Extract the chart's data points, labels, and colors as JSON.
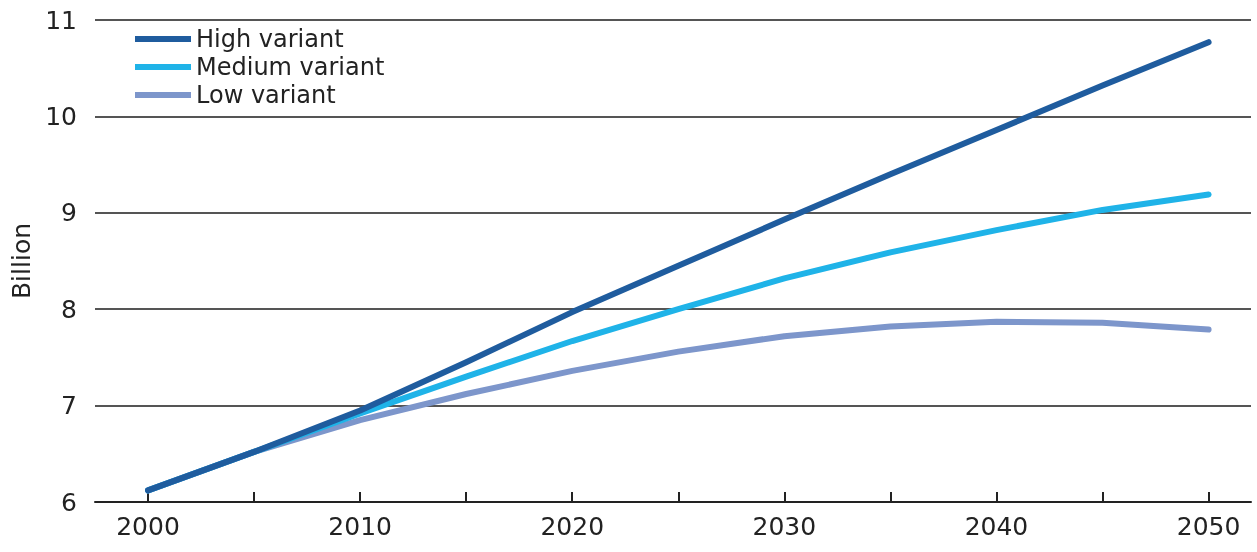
{
  "chart_data": {
    "type": "line",
    "ylabel": "Billion",
    "x": [
      2000,
      2005,
      2010,
      2015,
      2020,
      2025,
      2030,
      2035,
      2040,
      2045,
      2050
    ],
    "series": [
      {
        "name": "High variant",
        "color": "#1f5c9e",
        "values": [
          6.12,
          6.52,
          6.95,
          7.45,
          7.97,
          8.45,
          8.93,
          9.4,
          9.86,
          10.32,
          10.77
        ]
      },
      {
        "name": "Medium variant",
        "color": "#1fb3e8",
        "values": [
          6.12,
          6.52,
          6.92,
          7.3,
          7.67,
          8.0,
          8.32,
          8.59,
          8.82,
          9.03,
          9.19
        ]
      },
      {
        "name": "Low variant",
        "color": "#7d96cb",
        "values": [
          6.12,
          6.52,
          6.85,
          7.12,
          7.36,
          7.56,
          7.72,
          7.82,
          7.87,
          7.86,
          7.79
        ]
      }
    ],
    "xlim": [
      1997.5,
      2052
    ],
    "xticks": [
      2000,
      {
        "value": 2005,
        "label": null
      },
      2010,
      {
        "value": 2015,
        "label": null
      },
      2020,
      {
        "value": 2025,
        "label": null
      },
      2030,
      {
        "value": 2035,
        "label": null
      },
      2040,
      {
        "value": 2045,
        "label": null
      },
      2050
    ],
    "ylim": [
      6,
      11
    ],
    "yticks": [
      6,
      7,
      8,
      9,
      10,
      11
    ],
    "grid": "y",
    "legend": "top left",
    "marker": "none",
    "line_style": "solid"
  }
}
